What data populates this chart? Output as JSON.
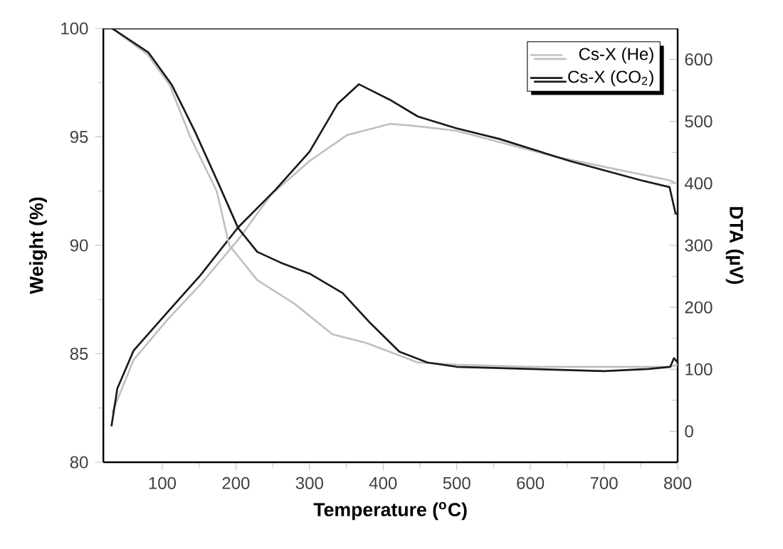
{
  "chart_data": {
    "type": "line",
    "xlabel": "Temperature ($^{o}$C)",
    "ylabel": "Weight (%)",
    "y2label": "DTA (µV)",
    "xlim": [
      20,
      800
    ],
    "xticks": [
      100,
      200,
      300,
      400,
      500,
      600,
      700,
      800
    ],
    "ylim": [
      80,
      100
    ],
    "yticks": [
      80,
      85,
      90,
      95,
      100
    ],
    "y2lim": [
      -50,
      650
    ],
    "y2ticks": [
      0,
      100,
      200,
      300,
      400,
      500,
      600
    ],
    "legend": "top right",
    "grid": false,
    "marker": "none",
    "line_style": "solid",
    "series": [
      {
        "name": "Cs-X (He)",
        "color": "#c0c0c0",
        "axis": "y",
        "x": [
          32,
          80,
          110,
          138,
          174,
          191,
          229,
          280,
          331,
          377,
          447,
          500,
          600,
          700,
          790,
          800
        ],
        "values": [
          100,
          98.8,
          97.4,
          95,
          92.5,
          90,
          88.4,
          87.3,
          85.9,
          85.5,
          84.6,
          84.5,
          84.4,
          84.4,
          84.4,
          84.5
        ]
      },
      {
        "name": "Cs-X (CO$_{2}$)",
        "color": "#1a1a1a",
        "axis": "y",
        "x": [
          32,
          81,
          113,
          145,
          177,
          203,
          229,
          261,
          300,
          345,
          383,
          422,
          460,
          500,
          600,
          700,
          760,
          790,
          795,
          800
        ],
        "values": [
          100,
          98.9,
          97.4,
          95.2,
          92.8,
          90.8,
          89.7,
          89.2,
          88.7,
          87.8,
          86.4,
          85.1,
          84.6,
          84.4,
          84.3,
          84.2,
          84.3,
          84.4,
          84.8,
          84.6
        ]
      },
      {
        "color": "#c0c0c0",
        "axis": "y2",
        "x": [
          32,
          61,
          107,
          152,
          203,
          248,
          300,
          351,
          409,
          441,
          499,
          634,
          789,
          797
        ],
        "values": [
          30,
          115,
          180,
          237,
          309,
          382,
          436,
          478,
          496,
          493,
          485,
          443,
          405,
          400
        ]
      },
      {
        "color": "#1a1a1a",
        "axis": "y2",
        "x": [
          31,
          39,
          61,
          107,
          152,
          203,
          254,
          300,
          338,
          367,
          409,
          447,
          499,
          557,
          654,
          750,
          789,
          797,
          800
        ],
        "values": [
          8,
          69,
          130,
          192,
          252,
          329,
          390,
          451,
          528,
          560,
          535,
          508,
          489,
          472,
          436,
          405,
          394,
          352,
          350
        ]
      }
    ]
  }
}
